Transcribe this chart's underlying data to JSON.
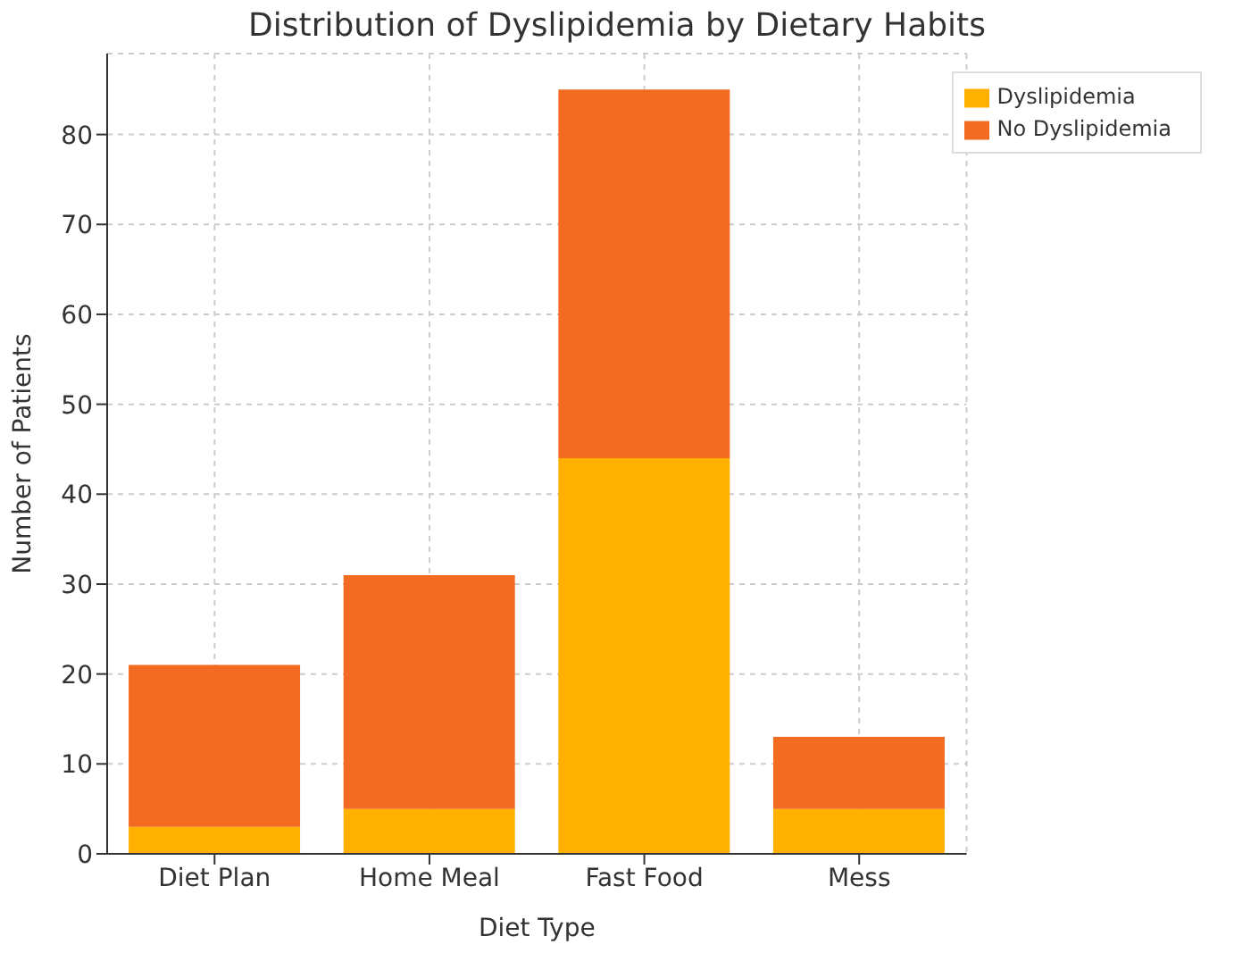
{
  "chart_data": {
    "type": "bar",
    "title": "Distribution of Dyslipidemia by Dietary Habits",
    "xlabel": "Diet Type",
    "ylabel": "Number of Patients",
    "categories": [
      "Diet Plan",
      "Home Meal",
      "Fast Food",
      "Mess"
    ],
    "series": [
      {
        "name": "Dyslipidemia",
        "color": "#ffb000",
        "values": [
          3,
          5,
          44,
          5
        ]
      },
      {
        "name": "No Dyslipidemia",
        "color": "#f26b21",
        "values": [
          18,
          26,
          41,
          8
        ]
      }
    ],
    "stacked": true,
    "ylim": [
      0,
      89
    ],
    "yticks": [
      0,
      10,
      20,
      30,
      40,
      50,
      60,
      70,
      80
    ],
    "grid": true,
    "legend": "top right"
  }
}
